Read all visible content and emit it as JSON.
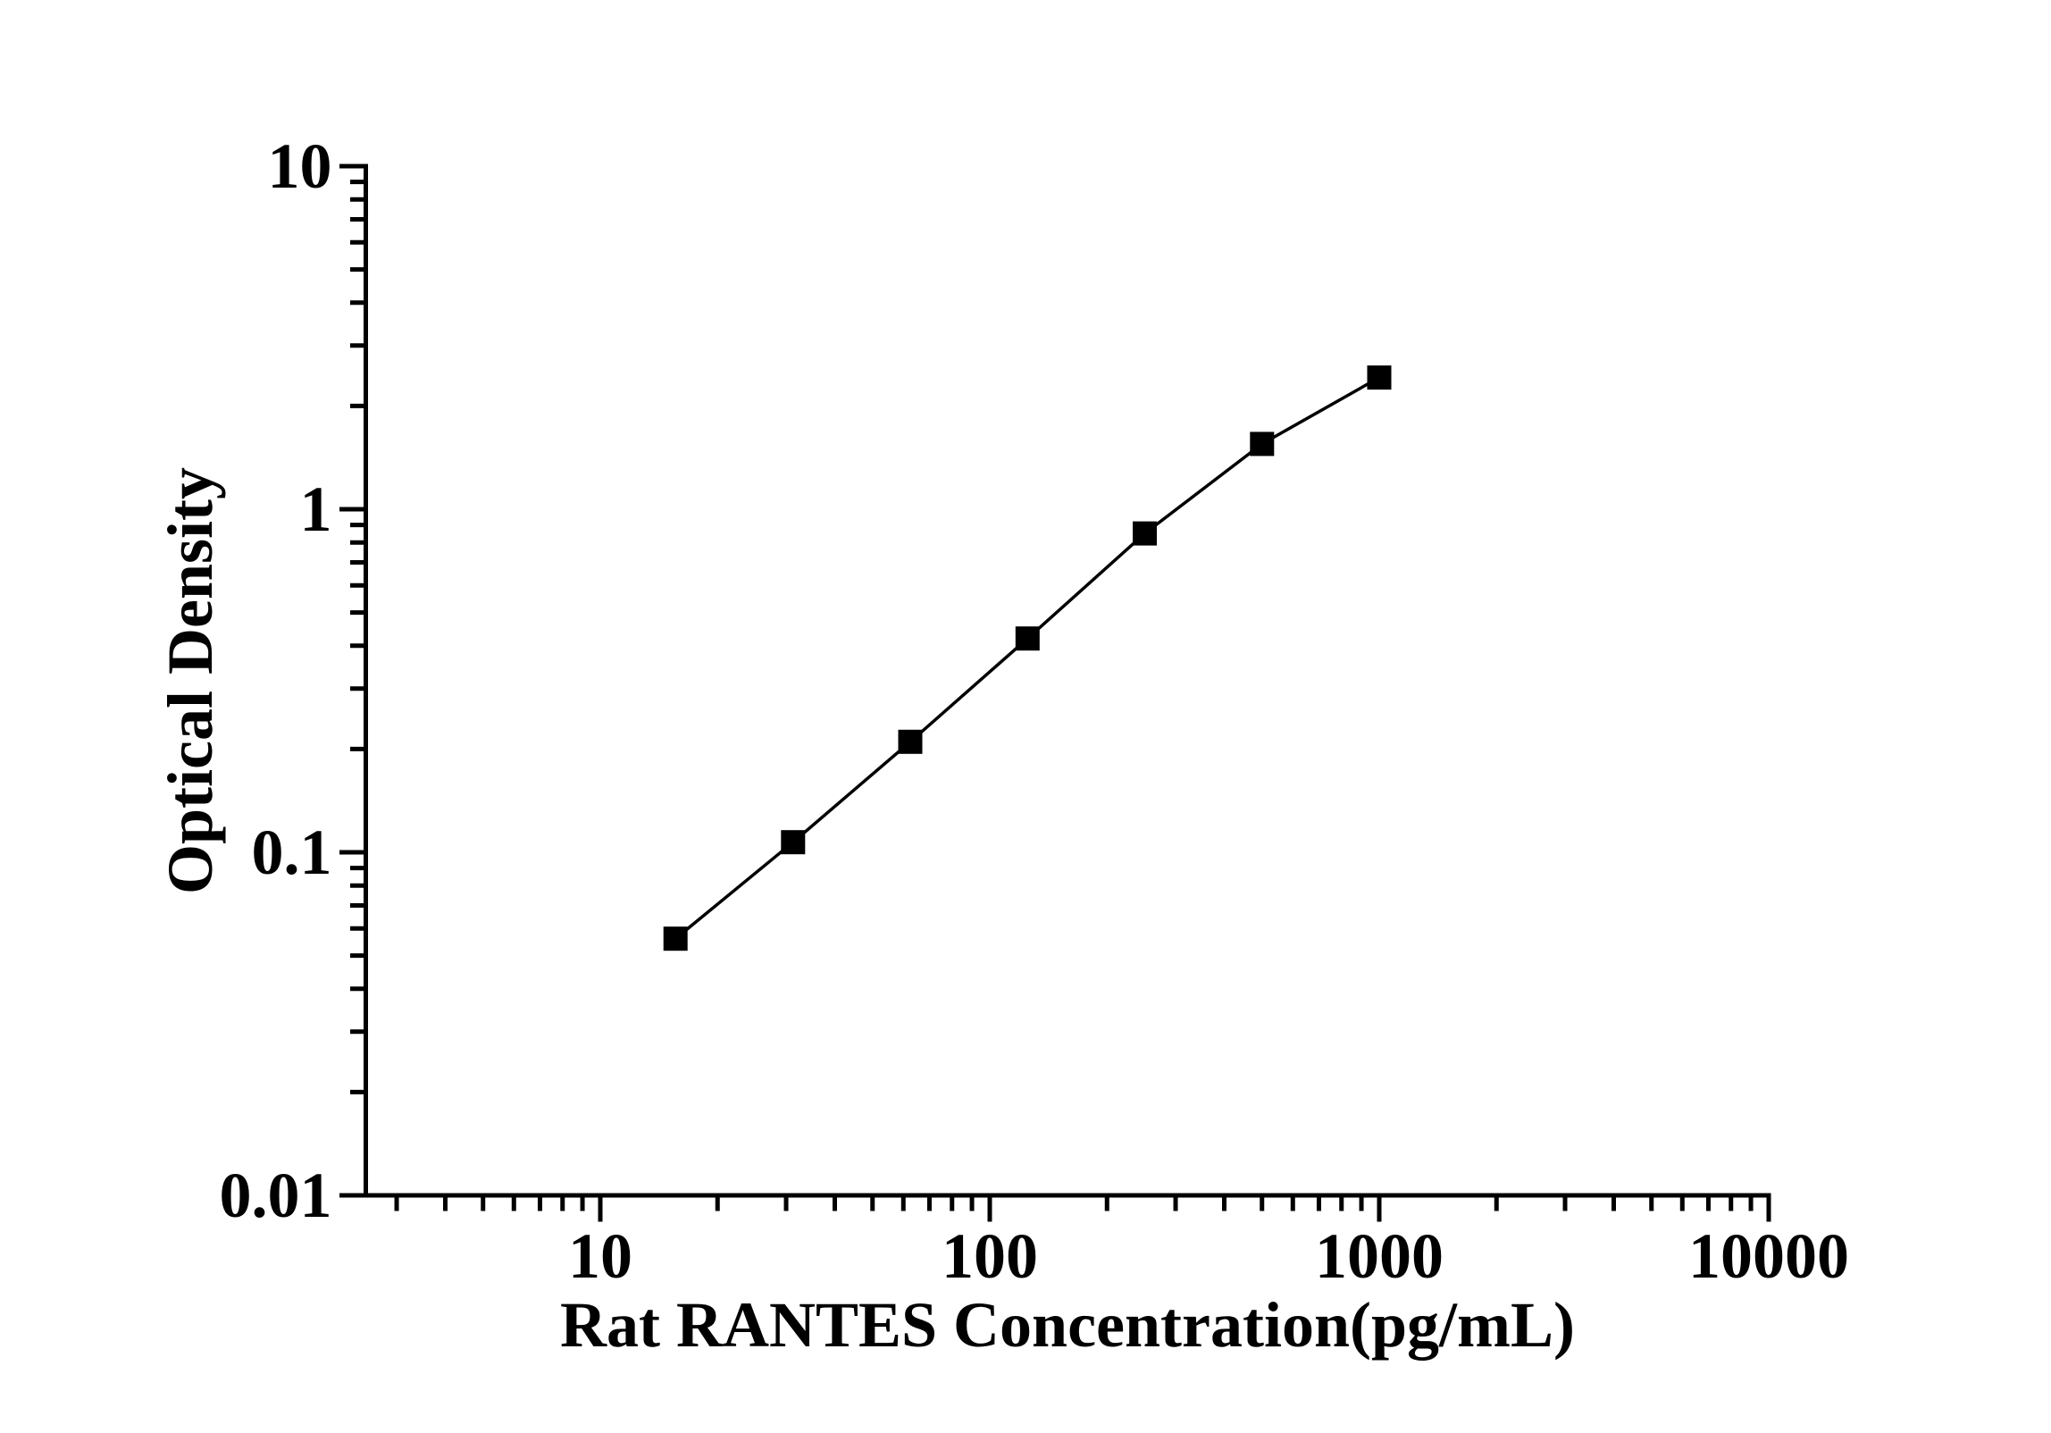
{
  "figure": {
    "background": "#ffffff",
    "foreground": "#000000"
  },
  "chart_data": {
    "type": "line",
    "title": "",
    "xlabel": "Rat RANTES Concentration(pg/mL)",
    "ylabel": "Optical Density",
    "xscale": "log",
    "yscale": "log",
    "xlim": [
      2.5,
      10000
    ],
    "ylim": [
      0.01,
      10
    ],
    "x_ticks": [
      10,
      100,
      1000,
      10000
    ],
    "x_tick_labels": [
      "10",
      "100",
      "1000",
      "10000"
    ],
    "y_ticks": [
      0.01,
      0.1,
      1,
      10
    ],
    "y_tick_labels": [
      "0.01",
      "0.1",
      "1",
      "10"
    ],
    "minor_ticks": "log 2-9 per decade, outward",
    "grid": false,
    "legend": false,
    "series": [
      {
        "name": "standard curve",
        "marker": "filled-square",
        "line": "solid",
        "color": "#000000",
        "points": [
          {
            "x": 15.6,
            "y": 0.056
          },
          {
            "x": 31.25,
            "y": 0.107
          },
          {
            "x": 62.5,
            "y": 0.21
          },
          {
            "x": 125,
            "y": 0.42
          },
          {
            "x": 250,
            "y": 0.85
          },
          {
            "x": 500,
            "y": 1.55
          },
          {
            "x": 1000,
            "y": 2.42
          }
        ]
      }
    ]
  }
}
